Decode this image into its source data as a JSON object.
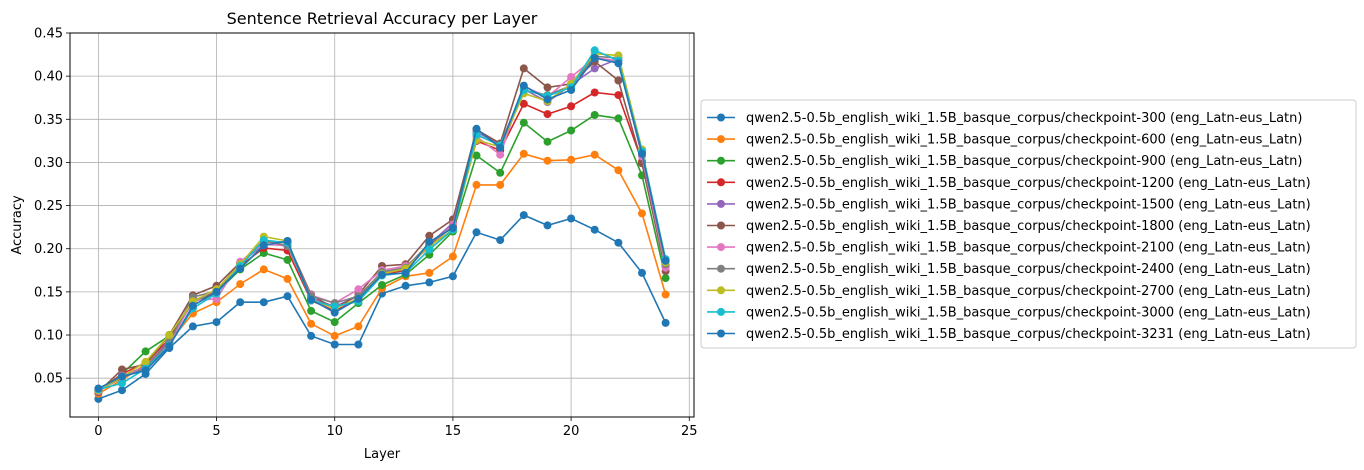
{
  "chart_data": {
    "type": "line",
    "title": "Sentence Retrieval Accuracy per Layer",
    "xlabel": "Layer",
    "ylabel": "Accuracy",
    "xlim": [
      -1.2,
      25.2
    ],
    "ylim": [
      0.005,
      0.45
    ],
    "xticks": [
      0,
      5,
      10,
      15,
      20,
      25
    ],
    "yticks": [
      0.05,
      0.1,
      0.15,
      0.2,
      0.25,
      0.3,
      0.35,
      0.4,
      0.45
    ],
    "ytick_labels": [
      "0.05",
      "0.10",
      "0.15",
      "0.20",
      "0.25",
      "0.30",
      "0.35",
      "0.40",
      "0.45"
    ],
    "grid": true,
    "legend_position": "center-left outside plot",
    "x": [
      0,
      1,
      2,
      3,
      4,
      5,
      6,
      7,
      8,
      9,
      10,
      11,
      12,
      13,
      14,
      15,
      16,
      17,
      18,
      19,
      20,
      21,
      22,
      23,
      24
    ],
    "series": [
      {
        "name": "qwen2.5-0.5b_english_wiki_1.5B_basque_corpus/checkpoint-300 (eng_Latn-eus_Latn)",
        "color": "#1f77b4",
        "values": [
          0.026,
          0.036,
          0.055,
          0.085,
          0.11,
          0.115,
          0.138,
          0.138,
          0.145,
          0.099,
          0.089,
          0.089,
          0.148,
          0.157,
          0.161,
          0.168,
          0.219,
          0.21,
          0.239,
          0.227,
          0.235,
          0.222,
          0.207,
          0.172,
          0.114
        ]
      },
      {
        "name": "qwen2.5-0.5b_english_wiki_1.5B_basque_corpus/checkpoint-600 (eng_Latn-eus_Latn)",
        "color": "#ff7f0e",
        "values": [
          0.032,
          0.048,
          0.066,
          0.092,
          0.125,
          0.138,
          0.159,
          0.176,
          0.165,
          0.113,
          0.099,
          0.11,
          0.154,
          0.168,
          0.172,
          0.191,
          0.274,
          0.274,
          0.31,
          0.302,
          0.303,
          0.309,
          0.291,
          0.241,
          0.147
        ]
      },
      {
        "name": "qwen2.5-0.5b_english_wiki_1.5B_basque_corpus/checkpoint-900 (eng_Latn-eus_Latn)",
        "color": "#2ca02c",
        "values": [
          0.035,
          0.055,
          0.081,
          0.099,
          0.138,
          0.149,
          0.176,
          0.195,
          0.187,
          0.128,
          0.115,
          0.137,
          0.158,
          0.17,
          0.193,
          0.22,
          0.308,
          0.288,
          0.346,
          0.324,
          0.337,
          0.355,
          0.351,
          0.285,
          0.166
        ]
      },
      {
        "name": "qwen2.5-0.5b_english_wiki_1.5B_basque_corpus/checkpoint-1200 (eng_Latn-eus_Latn)",
        "color": "#d62728",
        "values": [
          0.034,
          0.055,
          0.068,
          0.095,
          0.14,
          0.15,
          0.18,
          0.201,
          0.198,
          0.14,
          0.128,
          0.141,
          0.17,
          0.175,
          0.204,
          0.226,
          0.325,
          0.314,
          0.368,
          0.356,
          0.365,
          0.381,
          0.378,
          0.301,
          0.18
        ]
      },
      {
        "name": "qwen2.5-0.5b_english_wiki_1.5B_basque_corpus/checkpoint-1500 (eng_Latn-eus_Latn)",
        "color": "#9467bd",
        "values": [
          0.036,
          0.053,
          0.063,
          0.094,
          0.138,
          0.152,
          0.183,
          0.205,
          0.204,
          0.143,
          0.133,
          0.145,
          0.172,
          0.176,
          0.205,
          0.23,
          0.335,
          0.321,
          0.385,
          0.37,
          0.39,
          0.409,
          0.42,
          0.309,
          0.186
        ]
      },
      {
        "name": "qwen2.5-0.5b_english_wiki_1.5B_basque_corpus/checkpoint-1800 (eng_Latn-eus_Latn)",
        "color": "#8c564b",
        "values": [
          0.034,
          0.06,
          0.066,
          0.1,
          0.146,
          0.157,
          0.184,
          0.208,
          0.207,
          0.147,
          0.13,
          0.147,
          0.18,
          0.182,
          0.215,
          0.234,
          0.338,
          0.322,
          0.409,
          0.387,
          0.391,
          0.417,
          0.395,
          0.299,
          0.174
        ]
      },
      {
        "name": "qwen2.5-0.5b_english_wiki_1.5B_basque_corpus/checkpoint-2100 (eng_Latn-eus_Latn)",
        "color": "#e377c2",
        "values": [
          0.035,
          0.053,
          0.062,
          0.09,
          0.14,
          0.142,
          0.185,
          0.206,
          0.203,
          0.146,
          0.137,
          0.153,
          0.175,
          0.18,
          0.201,
          0.228,
          0.33,
          0.309,
          0.388,
          0.376,
          0.399,
          0.421,
          0.418,
          0.307,
          0.178
        ]
      },
      {
        "name": "qwen2.5-0.5b_english_wiki_1.5B_basque_corpus/checkpoint-2400 (eng_Latn-eus_Latn)",
        "color": "#7f7f7f",
        "values": [
          0.036,
          0.05,
          0.062,
          0.092,
          0.144,
          0.151,
          0.182,
          0.21,
          0.203,
          0.145,
          0.137,
          0.145,
          0.173,
          0.178,
          0.206,
          0.225,
          0.332,
          0.32,
          0.384,
          0.378,
          0.389,
          0.423,
          0.421,
          0.313,
          0.182
        ]
      },
      {
        "name": "qwen2.5-0.5b_english_wiki_1.5B_basque_corpus/checkpoint-2700 (eng_Latn-eus_Latn)",
        "color": "#bcbd22",
        "values": [
          0.036,
          0.051,
          0.069,
          0.1,
          0.139,
          0.153,
          0.182,
          0.214,
          0.209,
          0.141,
          0.131,
          0.142,
          0.171,
          0.177,
          0.203,
          0.222,
          0.326,
          0.318,
          0.38,
          0.371,
          0.391,
          0.426,
          0.424,
          0.315,
          0.184
        ]
      },
      {
        "name": "qwen2.5-0.5b_english_wiki_1.5B_basque_corpus/checkpoint-3000 (eng_Latn-eus_Latn)",
        "color": "#17becf",
        "values": [
          0.037,
          0.044,
          0.061,
          0.088,
          0.131,
          0.148,
          0.18,
          0.21,
          0.207,
          0.14,
          0.133,
          0.139,
          0.169,
          0.172,
          0.199,
          0.222,
          0.332,
          0.32,
          0.384,
          0.377,
          0.387,
          0.43,
          0.418,
          0.313,
          0.188
        ]
      },
      {
        "name": "qwen2.5-0.5b_english_wiki_1.5B_basque_corpus/checkpoint-3231 (eng_Latn-eus_Latn)",
        "color": "#1f77b4",
        "values": [
          0.038,
          0.052,
          0.059,
          0.087,
          0.134,
          0.15,
          0.177,
          0.204,
          0.209,
          0.141,
          0.126,
          0.142,
          0.17,
          0.172,
          0.208,
          0.224,
          0.339,
          0.317,
          0.389,
          0.373,
          0.384,
          0.421,
          0.415,
          0.31,
          0.186
        ]
      }
    ]
  }
}
